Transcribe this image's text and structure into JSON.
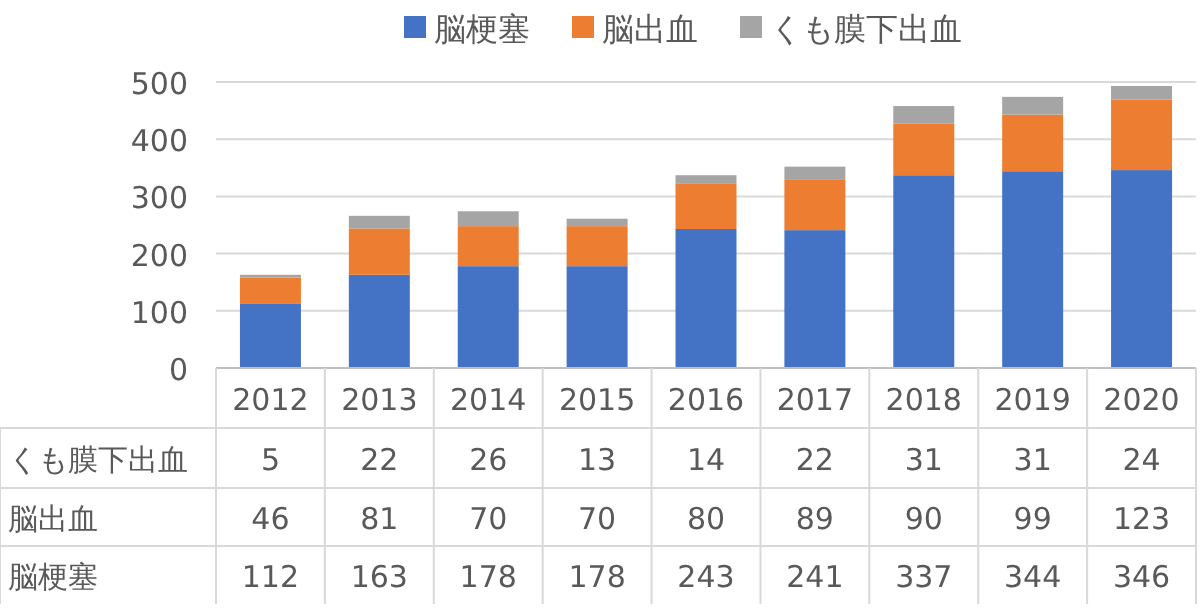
{
  "chart_data": {
    "type": "bar",
    "stacked": true,
    "categories": [
      "2012",
      "2013",
      "2014",
      "2015",
      "2016",
      "2017",
      "2018",
      "2019",
      "2020"
    ],
    "series": [
      {
        "name": "脳梗塞",
        "color": "#4472c4",
        "values": [
          112,
          163,
          178,
          178,
          243,
          241,
          337,
          344,
          346
        ]
      },
      {
        "name": "脳出血",
        "color": "#ed7d31",
        "values": [
          46,
          81,
          70,
          70,
          80,
          89,
          90,
          99,
          123
        ]
      },
      {
        "name": "くも膜下出血",
        "color": "#a5a5a5",
        "values": [
          5,
          22,
          26,
          13,
          14,
          22,
          31,
          31,
          24
        ]
      }
    ],
    "ylim": [
      0,
      500
    ],
    "yticks": [
      0,
      100,
      200,
      300,
      400,
      500
    ],
    "grid": "y",
    "legend": "top",
    "data_labels": true
  }
}
